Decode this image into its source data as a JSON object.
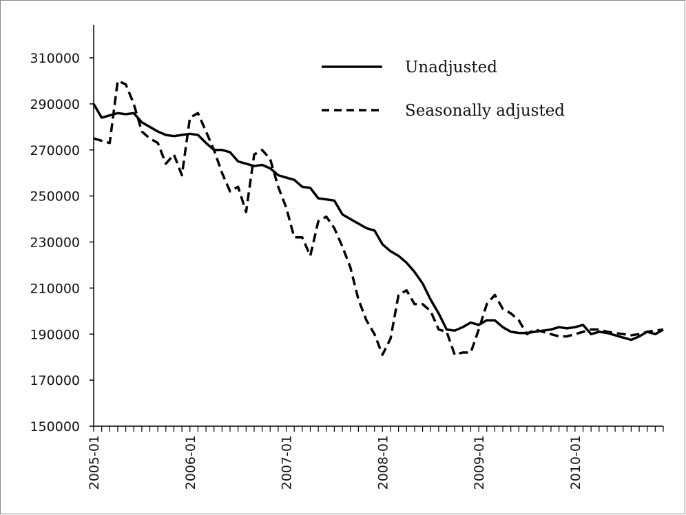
{
  "chart_data": {
    "type": "line",
    "title": "",
    "xlabel": "",
    "ylabel": "",
    "ylim": [
      150000,
      310000
    ],
    "yticks": [
      150000,
      170000,
      190000,
      210000,
      230000,
      250000,
      270000,
      290000,
      310000
    ],
    "xtick_labels": [
      "2005-01",
      "2006-01",
      "2007-01",
      "2008-01",
      "2009-01",
      "2010-01"
    ],
    "grid": false,
    "legend_position": "top-right",
    "x": [
      "2005-01",
      "2005-02",
      "2005-03",
      "2005-04",
      "2005-05",
      "2005-06",
      "2005-07",
      "2005-08",
      "2005-09",
      "2005-10",
      "2005-11",
      "2005-12",
      "2006-01",
      "2006-02",
      "2006-03",
      "2006-04",
      "2006-05",
      "2006-06",
      "2006-07",
      "2006-08",
      "2006-09",
      "2006-10",
      "2006-11",
      "2006-12",
      "2007-01",
      "2007-02",
      "2007-03",
      "2007-04",
      "2007-05",
      "2007-06",
      "2007-07",
      "2007-08",
      "2007-09",
      "2007-10",
      "2007-11",
      "2007-12",
      "2008-01",
      "2008-02",
      "2008-03",
      "2008-04",
      "2008-05",
      "2008-06",
      "2008-07",
      "2008-08",
      "2008-09",
      "2008-10",
      "2008-11",
      "2008-12",
      "2009-01",
      "2009-02",
      "2009-03",
      "2009-04",
      "2009-05",
      "2009-06",
      "2009-07",
      "2009-08",
      "2009-09",
      "2009-10",
      "2009-11",
      "2009-12",
      "2010-01",
      "2010-02",
      "2010-03",
      "2010-04",
      "2010-05",
      "2010-06",
      "2010-07",
      "2010-08",
      "2010-09",
      "2010-10",
      "2010-11",
      "2010-12"
    ],
    "series": [
      {
        "name": "Unadjusted",
        "style": "solid",
        "color": "#000000",
        "values": [
          290000,
          284000,
          285000,
          286000,
          285500,
          286000,
          282000,
          280000,
          278000,
          276500,
          276000,
          276500,
          277000,
          276500,
          273000,
          270000,
          270000,
          269000,
          265000,
          264000,
          263000,
          263500,
          262000,
          259000,
          258000,
          257000,
          254000,
          253500,
          249000,
          248500,
          248000,
          242000,
          240000,
          238000,
          236000,
          235000,
          229000,
          226000,
          224000,
          221000,
          217000,
          212000,
          205000,
          199000,
          192000,
          191500,
          193000,
          195000,
          194000,
          196000,
          196000,
          193000,
          191000,
          190500,
          190500,
          191000,
          191500,
          192000,
          193000,
          192500,
          193000,
          194000,
          190000,
          191000,
          190500,
          189500,
          188500,
          187500,
          189000,
          191000,
          190000,
          192000
        ]
      },
      {
        "name": "Seasonally adjusted",
        "style": "dashed",
        "color": "#000000",
        "values": [
          275000,
          274000,
          273000,
          300000,
          298500,
          290000,
          278000,
          275000,
          273000,
          264000,
          268000,
          259000,
          284000,
          286000,
          278000,
          270000,
          260000,
          252000,
          254000,
          243000,
          268000,
          270000,
          266000,
          254000,
          245000,
          232000,
          232000,
          224000,
          239000,
          241000,
          236000,
          228000,
          219000,
          205000,
          196000,
          190000,
          181000,
          188000,
          207000,
          209000,
          203000,
          203000,
          200000,
          192000,
          191000,
          181000,
          182000,
          182000,
          192000,
          203000,
          207000,
          201000,
          199000,
          196000,
          190000,
          192000,
          191000,
          190000,
          189000,
          189000,
          190000,
          191000,
          192000,
          192000,
          191000,
          190500,
          190000,
          189500,
          190000,
          191000,
          191500,
          192000
        ]
      }
    ]
  }
}
